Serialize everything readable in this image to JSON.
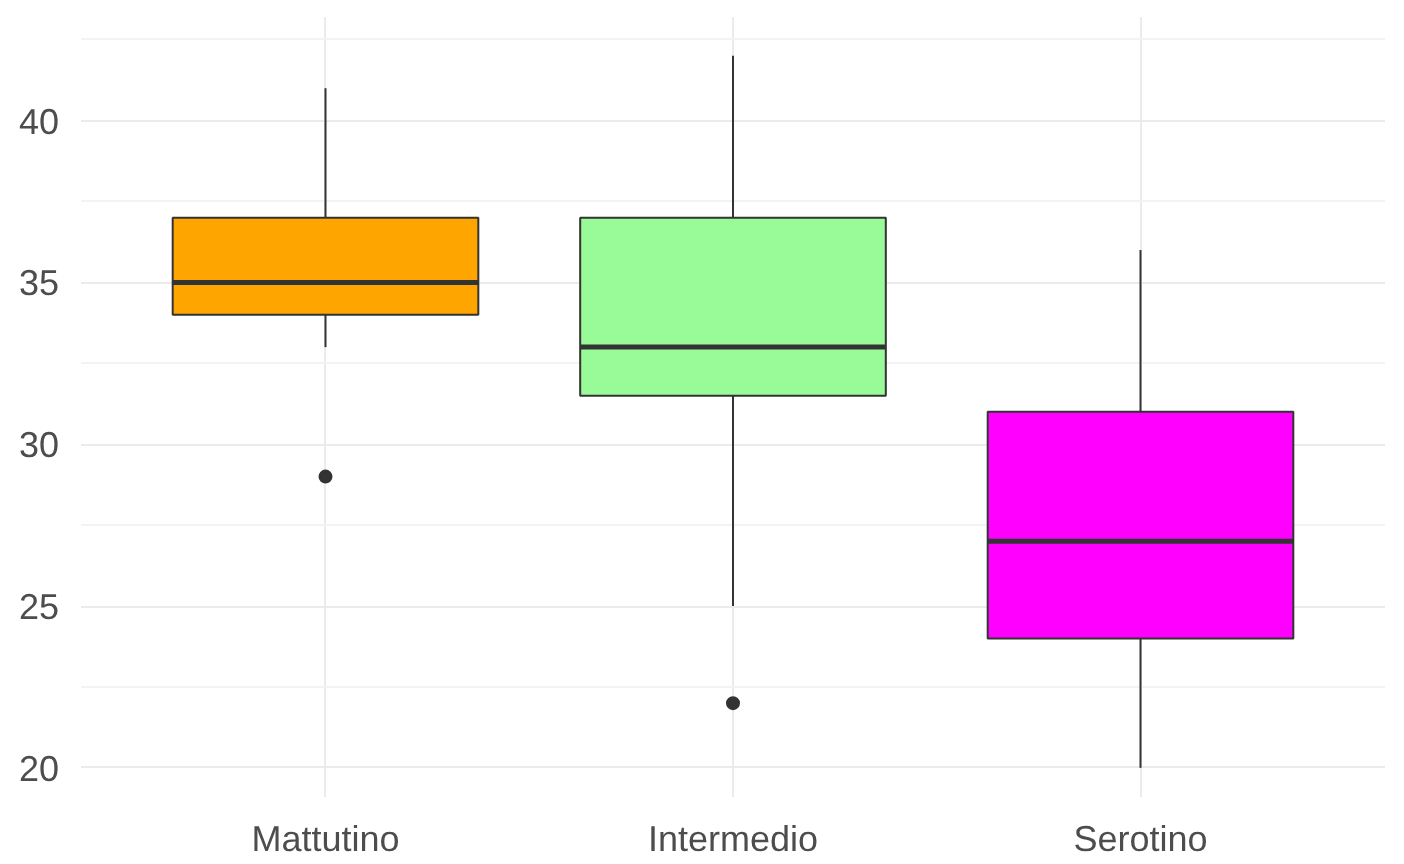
{
  "chart_data": {
    "type": "box",
    "categories": [
      "Mattutino",
      "Intermedio",
      "Serotino"
    ],
    "boxes": [
      {
        "low": 33,
        "q1": 34,
        "median": 35,
        "q3": 37,
        "high": 41,
        "outliers": [
          29
        ]
      },
      {
        "low": 25,
        "q1": 31.5,
        "median": 33,
        "q3": 37,
        "high": 42,
        "outliers": [
          22
        ]
      },
      {
        "low": 20,
        "q1": 24,
        "median": 27,
        "q3": 31,
        "high": 36
      }
    ],
    "colors": [
      "#ffa500",
      "#98fb98",
      "#ff00ff"
    ],
    "ylim": [
      19.1,
      43.2
    ],
    "yticks": [
      20,
      25,
      30,
      35,
      40
    ],
    "grid": true
  }
}
